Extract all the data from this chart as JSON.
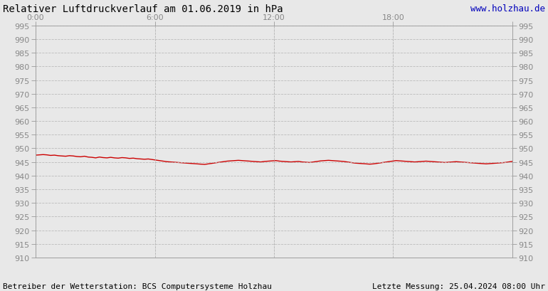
{
  "title": "Relativer Luftdruckverlauf am 01.06.2019 in hPa",
  "watermark": "www.holzhau.de",
  "footer_left": "Betreiber der Wetterstation: BCS Computersysteme Holzhau",
  "footer_right": "Letzte Messung: 25.04.2024 08:00 Uhr",
  "bg_color": "#e8e8e8",
  "plot_bg_color": "#e8e8e8",
  "line_color": "#cc0000",
  "grid_color": "#bbbbbb",
  "ylim": [
    910,
    995
  ],
  "ytick_step": 5,
  "xticks": [
    0,
    6,
    12,
    18,
    24
  ],
  "xtick_labels": [
    "0:00",
    "6:00",
    "12:00",
    "18:00",
    ""
  ],
  "pressure_data": [
    947.5,
    947.6,
    947.7,
    947.6,
    947.4,
    947.5,
    947.3,
    947.2,
    947.1,
    947.3,
    947.2,
    947.0,
    946.9,
    947.1,
    946.8,
    946.7,
    946.5,
    946.8,
    946.6,
    946.5,
    946.7,
    946.5,
    946.4,
    946.6,
    946.5,
    946.3,
    946.4,
    946.2,
    946.1,
    946.0,
    946.1,
    945.9,
    945.7,
    945.5,
    945.3,
    945.1,
    945.0,
    944.9,
    944.8,
    944.7,
    944.6,
    944.5,
    944.4,
    944.3,
    944.2,
    944.1,
    944.3,
    944.5,
    944.7,
    944.9,
    945.1,
    945.3,
    945.4,
    945.5,
    945.6,
    945.5,
    945.4,
    945.3,
    945.2,
    945.1,
    945.0,
    945.2,
    945.3,
    945.4,
    945.5,
    945.3,
    945.2,
    945.1,
    945.0,
    945.1,
    945.2,
    945.0,
    944.9,
    944.8,
    945.0,
    945.2,
    945.4,
    945.5,
    945.6,
    945.5,
    945.4,
    945.3,
    945.2,
    945.0,
    944.8,
    944.6,
    944.5,
    944.4,
    944.3,
    944.2,
    944.3,
    944.5,
    944.7,
    944.9,
    945.1,
    945.3,
    945.5,
    945.4,
    945.3,
    945.2,
    945.1,
    945.0,
    945.1,
    945.2,
    945.3,
    945.2,
    945.1,
    945.0,
    944.9,
    944.8,
    944.9,
    945.0,
    945.1,
    945.0,
    944.9,
    944.8,
    944.7,
    944.6,
    944.5,
    944.4,
    944.3,
    944.4,
    944.5,
    944.6,
    944.7,
    944.8,
    945.0,
    945.2
  ],
  "title_fontsize": 10,
  "tick_fontsize": 8,
  "footer_fontsize": 8,
  "watermark_fontsize": 9,
  "tick_color": "#888888",
  "title_color": "#000000",
  "watermark_color": "#0000bb"
}
